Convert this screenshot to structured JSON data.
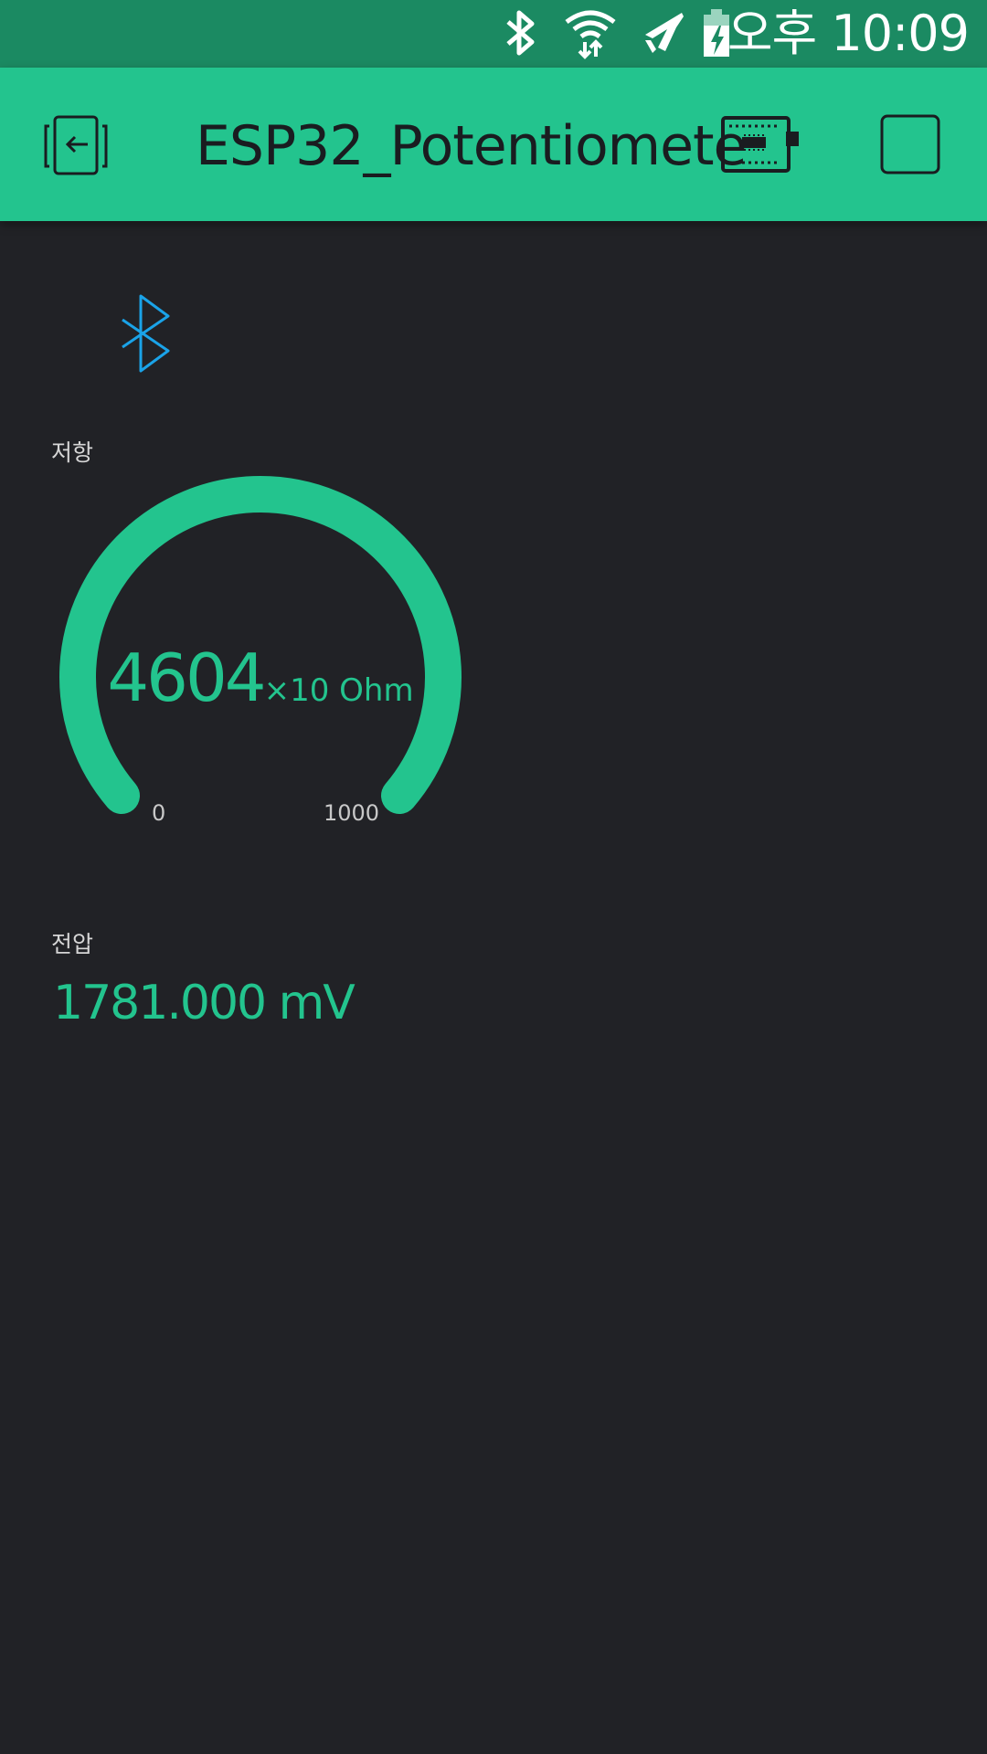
{
  "status_bar": {
    "time": "오후 10:09",
    "icons": [
      "bluetooth-icon",
      "wifi-icon",
      "airplane-mode-icon",
      "battery-charging-icon"
    ],
    "background": "#1b8a62"
  },
  "app_bar": {
    "title": "ESP32_Potentiomete",
    "background": "#23c48e",
    "left_icon": "exit-project-icon",
    "right_icons": [
      "device-board-icon",
      "stop-square-icon"
    ]
  },
  "widgets": {
    "bluetooth": {
      "icon": "bluetooth-icon",
      "color": "#1aa3e8"
    },
    "gauge": {
      "label": "저항",
      "value": "4604",
      "unit": "×10 Ohm",
      "min": "0",
      "max": "1000",
      "color": "#23c48e"
    },
    "voltage": {
      "label": "전압",
      "value": "1781.000 mV",
      "color": "#23c48e"
    }
  },
  "theme": {
    "background": "#212226",
    "accent": "#23c48e"
  }
}
